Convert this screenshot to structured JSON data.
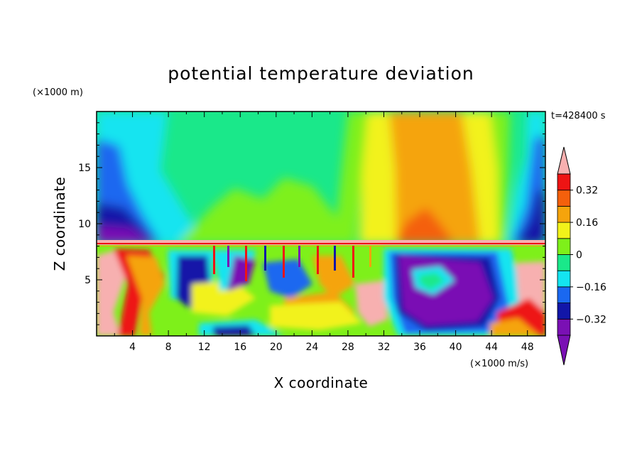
{
  "chart_data": {
    "type": "heatmap",
    "title": "potential temperature deviation",
    "xlabel": "X coordinate",
    "ylabel": "Z coordinate",
    "x_unit": "(×1000 m/s)",
    "y_unit": "(×1000 m)",
    "time_label": "t=428400 s",
    "xlim": [
      0,
      50
    ],
    "ylim": [
      0,
      20
    ],
    "x_ticks": [
      "4",
      "8",
      "12",
      "16",
      "20",
      "24",
      "28",
      "32",
      "36",
      "40",
      "44",
      "48"
    ],
    "y_ticks": [
      "5",
      "10",
      "15"
    ],
    "colorbar": {
      "labels": [
        "0.32",
        "0.16",
        "0",
        "−0.16",
        "−0.32"
      ],
      "levels": [
        -0.4,
        -0.32,
        -0.24,
        -0.16,
        -0.08,
        0,
        0.08,
        0.16,
        0.24,
        0.32,
        0.4
      ],
      "colors": [
        "#7a10b4",
        "#1216a8",
        "#1a68f0",
        "#14e4f0",
        "#1ae88a",
        "#7ef01a",
        "#f2f21a",
        "#f5a40c",
        "#f4600c",
        "#ee1414",
        "#f7b0b0"
      ]
    }
  }
}
